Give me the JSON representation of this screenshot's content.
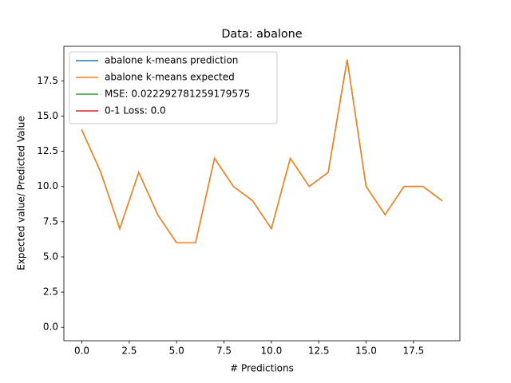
{
  "chart_data": {
    "type": "line",
    "title": "Data: abalone",
    "x_label": "# Predictions",
    "y_label": "Expected value/ Predicted Value",
    "x": [
      0,
      1,
      2,
      3,
      4,
      5,
      6,
      7,
      8,
      9,
      10,
      11,
      12,
      13,
      14,
      15,
      16,
      17,
      18,
      19
    ],
    "series": [
      {
        "name": "abalone k-means prediction",
        "color": "#1f77b4",
        "values": [
          14,
          11,
          7,
          11,
          8,
          6,
          6,
          12,
          10,
          9,
          7,
          12,
          10,
          11,
          19,
          10,
          8,
          10,
          10,
          9
        ]
      },
      {
        "name": "abalone k-means expected",
        "color": "#ff7f0e",
        "values": [
          14,
          11,
          7,
          11,
          8,
          6,
          6,
          12,
          10,
          9,
          7,
          12,
          10,
          11,
          19,
          10,
          8,
          10,
          10,
          9
        ]
      },
      {
        "name": "MSE: 0.022292781259179575",
        "color": "#2ca02c",
        "x": [
          0
        ],
        "values": [
          0.022292781259179575
        ]
      },
      {
        "name": "0-1 Loss: 0.0",
        "color": "#d62728",
        "x": [
          0
        ],
        "values": [
          0.0
        ]
      }
    ],
    "xlim": [
      -0.95,
      19.95
    ],
    "xticks": [
      {
        "value": 0,
        "label": "0.0"
      },
      2.5,
      {
        "value": 5,
        "label": "5.0"
      },
      7.5,
      {
        "value": 10,
        "label": "10.0"
      },
      12.5,
      {
        "value": 15,
        "label": "15.0"
      },
      17.5
    ],
    "ylim": [
      -0.95,
      19.95
    ],
    "yticks": [
      {
        "value": 0,
        "label": "0.0"
      },
      2.5,
      {
        "value": 5,
        "label": "5.0"
      },
      7.5,
      {
        "value": 10,
        "label": "10.0"
      },
      12.5,
      {
        "value": 15,
        "label": "15.0"
      },
      17.5
    ],
    "grid": false,
    "legend": "upper left"
  }
}
